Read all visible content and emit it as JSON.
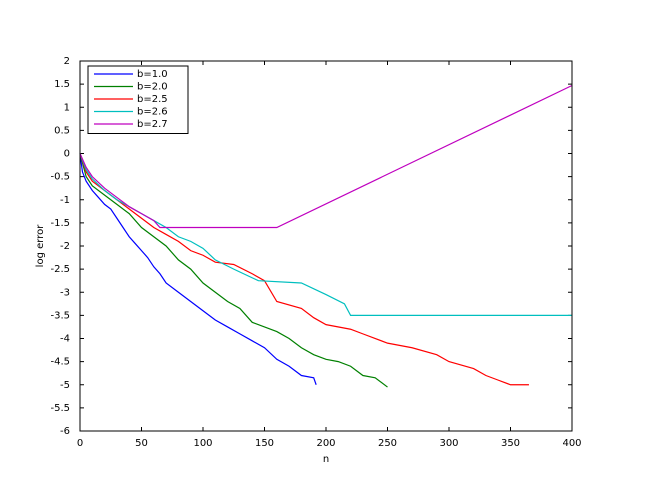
{
  "chart_data": {
    "type": "line",
    "x_label": "n",
    "y_label": "log error",
    "xlim": [
      0,
      400
    ],
    "ylim": [
      -6,
      2
    ],
    "xticks": [
      0,
      50,
      100,
      150,
      200,
      250,
      300,
      350,
      400
    ],
    "yticks": [
      -6,
      -5.5,
      -5,
      -4.5,
      -4,
      -3.5,
      -3,
      -2.5,
      -2,
      -1.5,
      -1,
      -0.5,
      0,
      0.5,
      1,
      1.5,
      2
    ],
    "legend": "upper-left",
    "series": [
      {
        "name": "b=1.0",
        "color": "#0000ff",
        "x": [
          0,
          2,
          5,
          10,
          15,
          20,
          25,
          30,
          35,
          40,
          45,
          50,
          55,
          60,
          65,
          70,
          80,
          90,
          100,
          110,
          120,
          130,
          140,
          150,
          160,
          170,
          180,
          190,
          192
        ],
        "values": [
          0,
          -0.4,
          -0.6,
          -0.8,
          -0.95,
          -1.1,
          -1.2,
          -1.4,
          -1.6,
          -1.8,
          -1.95,
          -2.1,
          -2.25,
          -2.45,
          -2.6,
          -2.8,
          -3.0,
          -3.2,
          -3.4,
          -3.6,
          -3.75,
          -3.9,
          -4.05,
          -4.2,
          -4.45,
          -4.6,
          -4.8,
          -4.85,
          -5.0
        ]
      },
      {
        "name": "b=2.0",
        "color": "#008000",
        "x": [
          0,
          5,
          10,
          20,
          30,
          40,
          50,
          60,
          70,
          80,
          90,
          100,
          110,
          120,
          130,
          140,
          160,
          170,
          180,
          190,
          200,
          210,
          220,
          230,
          240,
          250
        ],
        "values": [
          0,
          -0.5,
          -0.7,
          -0.9,
          -1.1,
          -1.3,
          -1.6,
          -1.8,
          -2.0,
          -2.3,
          -2.5,
          -2.8,
          -3.0,
          -3.2,
          -3.35,
          -3.65,
          -3.85,
          -4.0,
          -4.2,
          -4.35,
          -4.45,
          -4.5,
          -4.6,
          -4.8,
          -4.85,
          -5.05
        ]
      },
      {
        "name": "b=2.5",
        "color": "#ff0000",
        "x": [
          0,
          5,
          10,
          20,
          30,
          40,
          50,
          60,
          70,
          80,
          90,
          100,
          110,
          125,
          140,
          150,
          160,
          180,
          190,
          200,
          220,
          230,
          250,
          270,
          290,
          300,
          320,
          330,
          340,
          350,
          365
        ],
        "values": [
          0,
          -0.4,
          -0.6,
          -0.8,
          -1.0,
          -1.2,
          -1.4,
          -1.6,
          -1.75,
          -1.9,
          -2.1,
          -2.2,
          -2.35,
          -2.4,
          -2.6,
          -2.75,
          -3.2,
          -3.35,
          -3.55,
          -3.7,
          -3.8,
          -3.9,
          -4.1,
          -4.2,
          -4.35,
          -4.5,
          -4.65,
          -4.8,
          -4.9,
          -5.0,
          -5.0
        ]
      },
      {
        "name": "b=2.6",
        "color": "#00bfbf",
        "x": [
          0,
          5,
          10,
          20,
          30,
          40,
          50,
          60,
          70,
          80,
          90,
          100,
          110,
          125,
          145,
          180,
          200,
          215,
          220,
          400
        ],
        "values": [
          0,
          -0.35,
          -0.55,
          -0.8,
          -1.0,
          -1.15,
          -1.3,
          -1.45,
          -1.6,
          -1.8,
          -1.9,
          -2.05,
          -2.3,
          -2.5,
          -2.75,
          -2.8,
          -3.05,
          -3.25,
          -3.5,
          -3.5
        ]
      },
      {
        "name": "b=2.7",
        "color": "#bf00bf",
        "x": [
          0,
          5,
          10,
          20,
          30,
          40,
          50,
          60,
          65,
          160,
          400
        ],
        "values": [
          0,
          -0.3,
          -0.5,
          -0.75,
          -0.95,
          -1.15,
          -1.3,
          -1.45,
          -1.6,
          -1.6,
          1.47
        ]
      }
    ]
  }
}
